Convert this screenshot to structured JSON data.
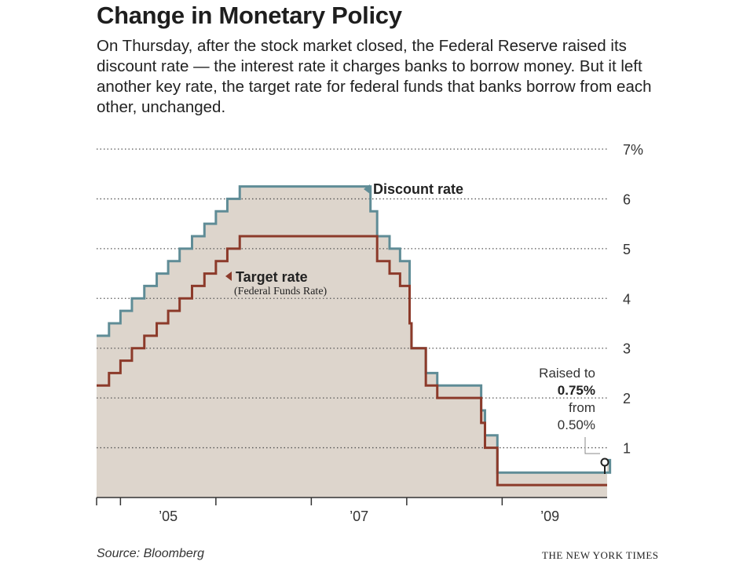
{
  "title": "Change in Monetary Policy",
  "subtitle": "On Thursday, after the stock market closed, the Federal Reserve raised its discount rate — the interest rate it charges banks to borrow money. But it left another key rate, the target rate for federal funds that banks borrow from each other, unchanged.",
  "source": "Source: Bloomberg",
  "credit": "THE NEW YORK TIMES",
  "colors": {
    "discount": "#5f8c96",
    "target": "#8c3a2a",
    "area": "#ddd5cc",
    "axis": "#333333",
    "grid": "#555555"
  },
  "chart_data": {
    "type": "line",
    "title": "Change in Monetary Policy",
    "xlabel": "",
    "ylabel": "",
    "xlim": [
      2004.75,
      2010.1
    ],
    "ylim": [
      0,
      7
    ],
    "yticks": [
      {
        "value": 1,
        "label": "1"
      },
      {
        "value": 2,
        "label": "2"
      },
      {
        "value": 3,
        "label": "3"
      },
      {
        "value": 4,
        "label": "4"
      },
      {
        "value": 5,
        "label": "5"
      },
      {
        "value": 6,
        "label": "6"
      },
      {
        "value": 7,
        "label": "7%"
      }
    ],
    "xticks": [
      {
        "value": 2005.5,
        "label": "’05"
      },
      {
        "value": 2007.5,
        "label": "’07"
      },
      {
        "value": 2009.5,
        "label": "’09"
      }
    ],
    "year_boundaries": [
      2005,
      2006,
      2007,
      2008,
      2009
    ],
    "grid": true,
    "series": [
      {
        "name": "Discount rate",
        "step": true,
        "points": [
          [
            2004.75,
            3.25
          ],
          [
            2004.88,
            3.5
          ],
          [
            2005.0,
            3.75
          ],
          [
            2005.12,
            4.0
          ],
          [
            2005.25,
            4.25
          ],
          [
            2005.38,
            4.5
          ],
          [
            2005.5,
            4.75
          ],
          [
            2005.62,
            5.0
          ],
          [
            2005.75,
            5.25
          ],
          [
            2005.88,
            5.5
          ],
          [
            2006.0,
            5.75
          ],
          [
            2006.12,
            6.0
          ],
          [
            2006.25,
            6.25
          ],
          [
            2007.62,
            5.75
          ],
          [
            2007.69,
            5.25
          ],
          [
            2007.82,
            5.0
          ],
          [
            2007.93,
            4.75
          ],
          [
            2008.03,
            3.5
          ],
          [
            2008.05,
            3.0
          ],
          [
            2008.2,
            2.5
          ],
          [
            2008.32,
            2.25
          ],
          [
            2008.78,
            1.75
          ],
          [
            2008.82,
            1.25
          ],
          [
            2008.95,
            0.5
          ],
          [
            2010.13,
            0.75
          ]
        ]
      },
      {
        "name": "Target rate",
        "step": true,
        "points": [
          [
            2004.75,
            2.25
          ],
          [
            2004.88,
            2.5
          ],
          [
            2005.0,
            2.75
          ],
          [
            2005.12,
            3.0
          ],
          [
            2005.25,
            3.25
          ],
          [
            2005.38,
            3.5
          ],
          [
            2005.5,
            3.75
          ],
          [
            2005.62,
            4.0
          ],
          [
            2005.75,
            4.25
          ],
          [
            2005.88,
            4.5
          ],
          [
            2006.0,
            4.75
          ],
          [
            2006.12,
            5.0
          ],
          [
            2006.25,
            5.25
          ],
          [
            2007.69,
            4.75
          ],
          [
            2007.82,
            4.5
          ],
          [
            2007.93,
            4.25
          ],
          [
            2008.03,
            3.5
          ],
          [
            2008.05,
            3.0
          ],
          [
            2008.2,
            2.25
          ],
          [
            2008.32,
            2.0
          ],
          [
            2008.78,
            1.5
          ],
          [
            2008.82,
            1.0
          ],
          [
            2008.95,
            0.25
          ]
        ]
      }
    ],
    "annotations": {
      "discount_label": "Discount rate",
      "target_label": "Target rate",
      "target_sublabel": "(Federal Funds Rate)",
      "raise_line1": "Raised to",
      "raise_value": "0.75%",
      "raise_line3": "from",
      "raise_prev": "0.50%"
    }
  }
}
